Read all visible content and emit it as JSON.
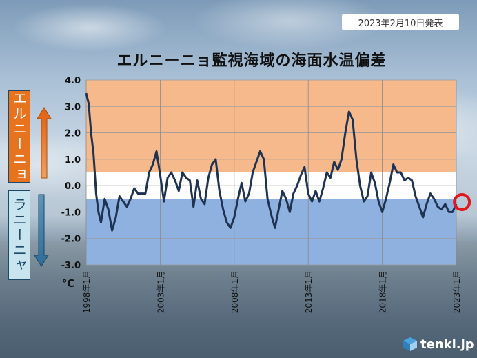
{
  "header": {
    "date_badge": "2023年2月10日発表"
  },
  "chart_data": {
    "type": "line",
    "title": "エルニーニョ監視海域の海面水温偏差",
    "ylabel_unit": "℃",
    "ylim": [
      -3.0,
      4.0
    ],
    "yticks": [
      "4.0",
      "3.0",
      "2.0",
      "1.0",
      "0.0",
      "-1.0",
      "-2.0",
      "-3.0"
    ],
    "xticks": [
      "1998年1月",
      "2003年1月",
      "2008年1月",
      "2013年1月",
      "2018年1月",
      "2023年1月"
    ],
    "bands": [
      {
        "name": "エルニーニョ",
        "from": 0.5,
        "to": 4.0,
        "color": "#f6b98b"
      },
      {
        "name": "ラニーニャ",
        "from": -3.0,
        "to": -0.5,
        "color": "#8fb1df"
      }
    ],
    "highlight": {
      "x": 2023.1,
      "y": -0.7,
      "color": "#e2161d"
    },
    "series": [
      {
        "color": "#1e3352",
        "x": [
          1998.0,
          1998.17,
          1998.33,
          1998.5,
          1998.67,
          1998.83,
          1999.0,
          1999.25,
          1999.5,
          1999.75,
          2000.0,
          2000.25,
          2000.5,
          2000.75,
          2001.0,
          2001.25,
          2001.5,
          2001.75,
          2002.0,
          2002.25,
          2002.5,
          2002.75,
          2003.0,
          2003.25,
          2003.5,
          2003.75,
          2004.0,
          2004.25,
          2004.5,
          2004.75,
          2005.0,
          2005.25,
          2005.5,
          2005.75,
          2006.0,
          2006.25,
          2006.5,
          2006.75,
          2007.0,
          2007.25,
          2007.5,
          2007.75,
          2008.0,
          2008.25,
          2008.5,
          2008.75,
          2009.0,
          2009.25,
          2009.5,
          2009.75,
          2010.0,
          2010.25,
          2010.5,
          2010.75,
          2011.0,
          2011.25,
          2011.5,
          2011.75,
          2012.0,
          2012.25,
          2012.5,
          2012.75,
          2013.0,
          2013.25,
          2013.5,
          2013.75,
          2014.0,
          2014.25,
          2014.5,
          2014.75,
          2015.0,
          2015.25,
          2015.5,
          2015.75,
          2016.0,
          2016.25,
          2016.5,
          2016.75,
          2017.0,
          2017.25,
          2017.5,
          2017.75,
          2018.0,
          2018.25,
          2018.5,
          2018.75,
          2019.0,
          2019.25,
          2019.5,
          2019.75,
          2020.0,
          2020.25,
          2020.5,
          2020.75,
          2021.0,
          2021.25,
          2021.5,
          2021.75,
          2022.0,
          2022.25,
          2022.5,
          2022.75,
          2023.0
        ],
        "y": [
          3.5,
          3.1,
          2.0,
          1.2,
          -0.3,
          -1.0,
          -1.4,
          -0.5,
          -0.9,
          -1.7,
          -1.2,
          -0.4,
          -0.6,
          -0.8,
          -0.5,
          -0.1,
          -0.3,
          -0.3,
          -0.3,
          0.5,
          0.8,
          1.3,
          0.4,
          -0.6,
          0.3,
          0.5,
          0.2,
          -0.2,
          0.5,
          0.3,
          0.2,
          -0.8,
          0.2,
          -0.5,
          -0.7,
          0.3,
          0.8,
          1.0,
          -0.2,
          -0.9,
          -1.4,
          -1.6,
          -1.2,
          -0.5,
          0.1,
          -0.6,
          -0.3,
          0.5,
          0.9,
          1.3,
          1.0,
          -0.5,
          -1.1,
          -1.6,
          -0.9,
          -0.2,
          -0.5,
          -1.0,
          -0.3,
          0.0,
          0.4,
          0.7,
          -0.3,
          -0.6,
          -0.2,
          -0.6,
          -0.1,
          0.5,
          0.3,
          0.9,
          0.6,
          1.0,
          2.0,
          2.8,
          2.5,
          1.0,
          0.0,
          -0.6,
          -0.4,
          0.5,
          0.1,
          -0.6,
          -1.0,
          -0.5,
          0.1,
          0.8,
          0.5,
          0.5,
          0.2,
          0.3,
          0.2,
          -0.4,
          -0.8,
          -1.2,
          -0.7,
          -0.3,
          -0.5,
          -0.8,
          -0.9,
          -0.7,
          -1.0,
          -1.0,
          -0.7
        ]
      }
    ]
  },
  "footer": {
    "logo_text": "tenki.jp"
  }
}
